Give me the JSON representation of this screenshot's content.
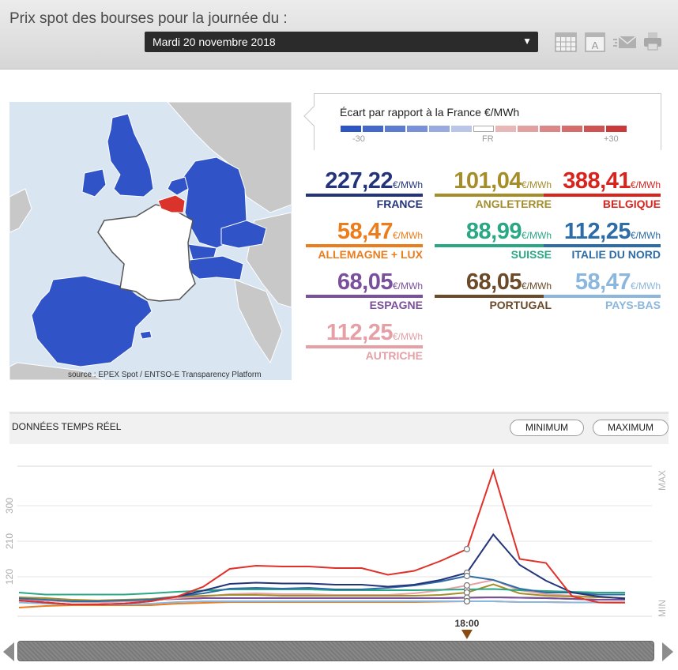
{
  "header": {
    "title": "Prix spot des bourses pour la journée du :",
    "date": "Mardi 20 novembre 2018"
  },
  "toolbar": {
    "icons": [
      "calendar-icon",
      "text-icon",
      "email-icon",
      "print-icon"
    ]
  },
  "map": {
    "source": "source : EPEX Spot / ENTSO-E Transparency Platform",
    "colors": {
      "sea": "#d9e6f2",
      "land": "#c8c8c8",
      "market": "#3054c8",
      "france": "#ffffff",
      "belgium": "#d9332b"
    }
  },
  "legend": {
    "title": "Écart par rapport à la France €/MWh",
    "min": "-30",
    "mid": "FR",
    "max": "+30",
    "scale_colors": [
      "#2d56c3",
      "#4468c9",
      "#5b7cd0",
      "#7891d8",
      "#98aae0",
      "#b9c6ea",
      "#ffffff",
      "#e8b8b8",
      "#e2a0a0",
      "#dc8787",
      "#d56d6d",
      "#cf5353",
      "#c93b3b"
    ]
  },
  "prices": [
    {
      "value": "227,22",
      "unit": "€/MWh",
      "country": "FRANCE",
      "color": "#24347a"
    },
    {
      "value": "101,04",
      "unit": "€/MWh",
      "country": "ANGLETERRE",
      "color": "#a58d2a"
    },
    {
      "value": "388,41",
      "unit": "€/MWh",
      "country": "BELGIQUE",
      "color": "#d9241e"
    },
    {
      "value": "58,47",
      "unit": "€/MWh",
      "country": "ALLEMAGNE + LUX",
      "color": "#ec7d1d"
    },
    {
      "value": "88,99",
      "unit": "€/MWh",
      "country": "SUISSE",
      "color": "#2aa886"
    },
    {
      "value": "112,25",
      "unit": "€/MWh",
      "country": "ITALIE DU NORD",
      "color": "#2e6ca6"
    },
    {
      "value": "68,05",
      "unit": "€/MWh",
      "country": "ESPAGNE",
      "color": "#7a4f9b"
    },
    {
      "value": "68,05",
      "unit": "€/MWh",
      "country": "PORTUGAL",
      "color": "#6b4a2a"
    },
    {
      "value": "58,47",
      "unit": "€/MWh",
      "country": "PAYS-BAS",
      "color": "#8bb6dd"
    },
    {
      "value": "112,25",
      "unit": "€/MWh",
      "country": "AUTRICHE",
      "color": "#e5a0a6"
    }
  ],
  "realtime": {
    "title": "DONNÉES TEMPS RÉEL",
    "min_button": "MINIMUM",
    "max_button": "MAXIMUM",
    "marker_label": "18:00",
    "axis_max": "MAX",
    "axis_min": "MIN"
  },
  "chart_data": {
    "type": "line",
    "x": [
      1,
      2,
      3,
      4,
      5,
      6,
      7,
      8,
      9,
      10,
      11,
      12,
      13,
      14,
      15,
      16,
      17,
      18,
      19,
      20,
      21,
      22,
      23,
      24
    ],
    "marker_hour": 18,
    "yticks": [
      120,
      210,
      300
    ],
    "ylim": [
      20,
      400
    ],
    "series": [
      {
        "name": "BELGIQUE",
        "color": "#e0302a",
        "values": [
          60,
          55,
          50,
          50,
          52,
          58,
          70,
          95,
          140,
          148,
          146,
          146,
          142,
          142,
          125,
          135,
          160,
          190,
          388,
          165,
          155,
          70,
          55,
          55
        ]
      },
      {
        "name": "FRANCE",
        "color": "#24347a",
        "values": [
          60,
          55,
          50,
          50,
          52,
          58,
          70,
          85,
          102,
          105,
          103,
          103,
          100,
          100,
          95,
          100,
          112,
          130,
          227,
          150,
          110,
          80,
          70,
          65
        ]
      },
      {
        "name": "ITALIE DU NORD",
        "color": "#2e6ca6",
        "values": [
          65,
          62,
          58,
          58,
          60,
          62,
          70,
          78,
          90,
          92,
          90,
          92,
          88,
          88,
          92,
          98,
          108,
          122,
          112,
          90,
          80,
          80,
          75,
          75
        ]
      },
      {
        "name": "SUISSE",
        "color": "#2aa886",
        "values": [
          80,
          75,
          75,
          75,
          75,
          78,
          82,
          85,
          88,
          88,
          88,
          88,
          86,
          86,
          86,
          86,
          87,
          88,
          89,
          86,
          84,
          82,
          80,
          80
        ]
      },
      {
        "name": "ANGLETERRE",
        "color": "#a58d2a",
        "values": [
          68,
          66,
          62,
          60,
          62,
          64,
          70,
          72,
          74,
          74,
          72,
          72,
          72,
          72,
          72,
          72,
          74,
          80,
          101,
          78,
          72,
          70,
          68,
          66
        ]
      },
      {
        "name": "AUTRICHE",
        "color": "#e5a0a6",
        "values": [
          62,
          60,
          56,
          55,
          57,
          60,
          66,
          70,
          76,
          78,
          76,
          76,
          74,
          74,
          74,
          78,
          86,
          98,
          112,
          86,
          76,
          72,
          68,
          66
        ]
      },
      {
        "name": "ESPAGNE",
        "color": "#7a4f9b",
        "values": [
          62,
          60,
          58,
          58,
          60,
          62,
          64,
          66,
          66,
          66,
          66,
          66,
          66,
          66,
          66,
          66,
          66,
          67,
          68,
          67,
          66,
          64,
          62,
          62
        ]
      },
      {
        "name": "PORTUGAL",
        "color": "#6b4a2a",
        "values": [
          62,
          60,
          58,
          58,
          60,
          62,
          64,
          66,
          66,
          66,
          66,
          66,
          66,
          66,
          66,
          66,
          66,
          67,
          68,
          67,
          66,
          64,
          62,
          62
        ]
      },
      {
        "name": "PAYS-BAS",
        "color": "#8bb6dd",
        "values": [
          55,
          52,
          50,
          50,
          50,
          52,
          56,
          58,
          58,
          58,
          58,
          58,
          58,
          58,
          58,
          58,
          58,
          58,
          58,
          56,
          56,
          55,
          55,
          54
        ]
      },
      {
        "name": "ALLEMAGNE + LUX",
        "color": "#ec7d1d",
        "values": [
          42,
          46,
          48,
          48,
          48,
          48,
          52,
          54,
          56,
          56,
          56,
          56,
          56,
          56,
          56,
          56,
          57,
          58,
          58,
          56,
          56,
          55,
          55,
          54
        ]
      }
    ]
  }
}
